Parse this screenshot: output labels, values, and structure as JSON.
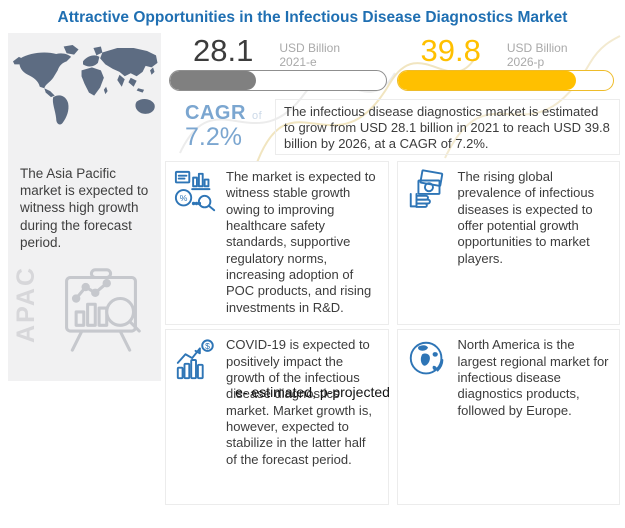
{
  "title": "Attractive Opportunities in the Infectious Disease Diagnostics Market",
  "left_panel": {
    "region_label": "APAC",
    "description": "The Asia Pacific market is expected to witness high growth during the forecast period."
  },
  "stats": {
    "current": {
      "value": "28.1",
      "unit": "USD Billion",
      "year": "2021-e",
      "fill_pct": 40
    },
    "projected": {
      "value": "39.8",
      "unit": "USD Billion",
      "year": "2026-p",
      "fill_pct": 83
    }
  },
  "cagr": {
    "label": "CAGR",
    "of_word": "of",
    "value": "7.2%",
    "description": "The infectious disease diagnostics market is estimated to grow from USD 28.1 billion in 2021 to reach USD 39.8 billion by 2026, at a CAGR of 7.2%."
  },
  "insights": [
    {
      "icon": "market-analysis-icon",
      "text": "The market is expected to witness stable growth owing to improving healthcare safety standards, supportive regulatory norms, increasing adoption of POC products, and rising investments in R&D."
    },
    {
      "icon": "investment-money-icon",
      "text": "The rising global prevalence of infectious diseases is expected to offer potential growth opportunities to market players."
    },
    {
      "icon": "growth-bar-chart-icon",
      "text": "COVID-19 is expected to positively impact the growth of the infectious disease diagnostics market. Market growth is, however, expected to stabilize in the latter half of the forecast period."
    },
    {
      "icon": "globe-icon",
      "text": "North America is the largest regional market for infectious disease diagnostics products, followed by Europe."
    }
  ],
  "footnote": "e- estimated, p-projected",
  "colors": {
    "title_blue": "#1f6fb2",
    "accent_gold": "#ffc000",
    "bar_gray": "#808080",
    "cagr_blue": "#7ba6d0",
    "icon_blue": "#2e75b6",
    "map_slate": "#5d6c82",
    "panel_bg": "#f1f1f2"
  },
  "chart_data": {
    "type": "bar",
    "categories": [
      "2021-e",
      "2026-p"
    ],
    "values": [
      28.1,
      39.8
    ],
    "series_unit": "USD Billion",
    "title": "Attractive Opportunities in the Infectious Disease Diagnostics Market",
    "xlabel": "",
    "ylabel": "USD Billion",
    "annotations": [
      "CAGR of 7.2%",
      "e- estimated, p-projected"
    ],
    "legend_position": "none",
    "grid": false
  }
}
